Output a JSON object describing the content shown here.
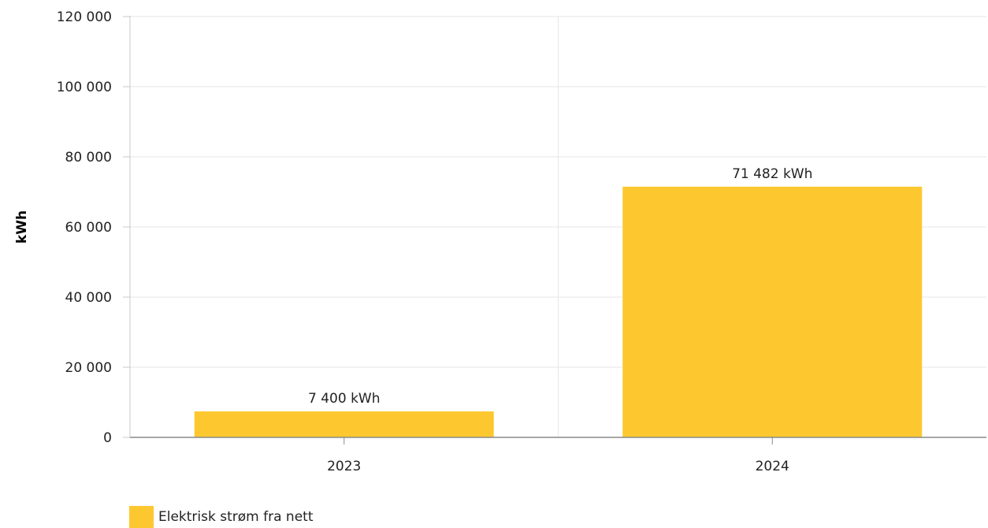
{
  "chart_data": {
    "type": "bar",
    "categories": [
      "2023",
      "2024"
    ],
    "series": [
      {
        "name": "Elektrisk strøm fra nett",
        "values": [
          7400,
          71482
        ],
        "data_labels": [
          "7 400 kWh",
          "71 482 kWh"
        ],
        "color": "#fdc82f"
      }
    ],
    "title": "",
    "xlabel": "",
    "ylabel": "kWh",
    "ylim": [
      0,
      120000
    ],
    "yticks": [
      0,
      20000,
      40000,
      60000,
      80000,
      100000,
      120000
    ],
    "ytick_labels": [
      "0",
      "20 000",
      "40 000",
      "60 000",
      "80 000",
      "100 000",
      "120 000"
    ],
    "grid": true,
    "legend_position": "bottom-left"
  },
  "legend": {
    "label": "Elektrisk strøm fra nett"
  }
}
